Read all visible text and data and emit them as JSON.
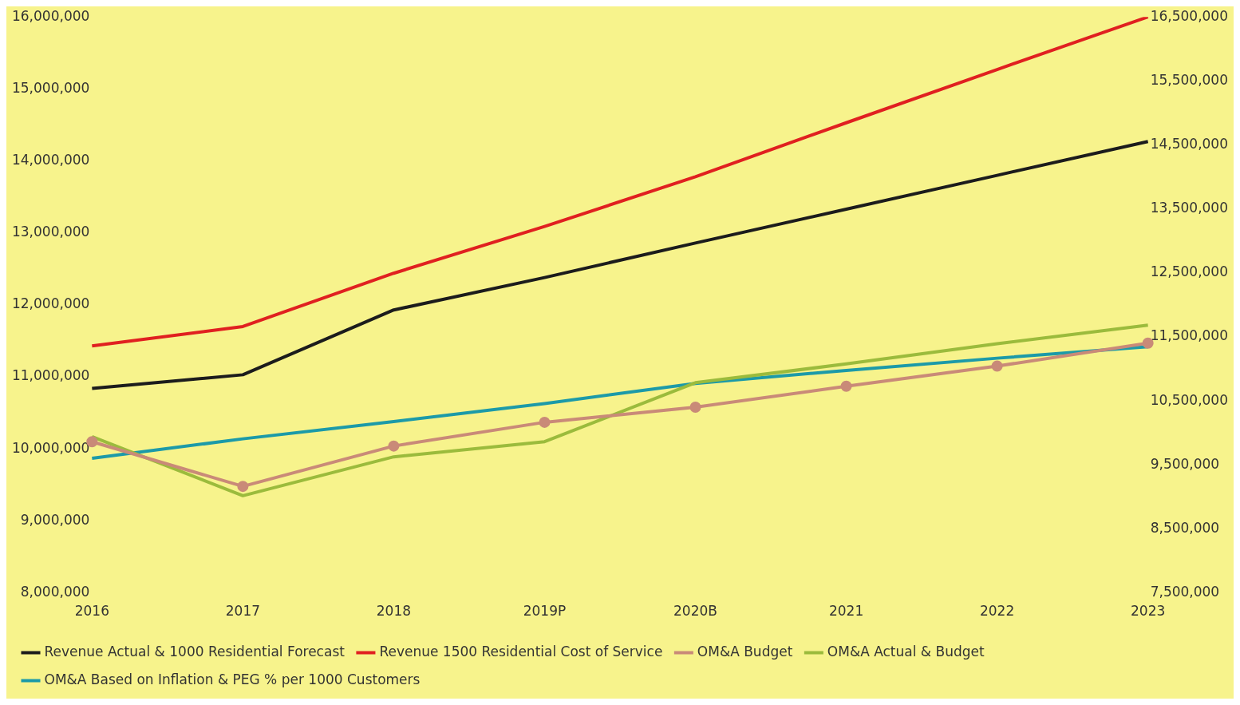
{
  "chart_data": {
    "type": "line",
    "categories": [
      "2016",
      "2017",
      "2018",
      "2019P",
      "2020B",
      "2021",
      "2022",
      "2023"
    ],
    "series": [
      {
        "name": "Revenue Actual & 1000 Residential Forecast",
        "color": "#1c1c1c",
        "values": [
          10840000,
          11030000,
          11930000,
          12380000,
          12860000,
          13330000,
          13800000,
          14270000
        ]
      },
      {
        "name": "Revenue 1500 Residential Cost of Service",
        "color": "#e02020",
        "values": [
          11430000,
          11700000,
          12440000,
          13090000,
          13780000,
          14530000,
          15270000,
          16000000
        ]
      },
      {
        "name": "OM&A Budget",
        "color": "#c98a78",
        "marker": "circle",
        "values": [
          10100000,
          9480000,
          10040000,
          10370000,
          10580000,
          10870000,
          11150000,
          11470000
        ]
      },
      {
        "name": "OM&A Actual & Budget",
        "color": "#9bbb3c",
        "values": [
          10170000,
          9350000,
          9890000,
          10100000,
          10920000,
          11180000,
          11460000,
          11720000
        ]
      },
      {
        "name": "OM&A Based on Inflation & PEG % per 1000 Customers",
        "color": "#1c9aa8",
        "values": [
          9870000,
          10140000,
          10380000,
          10630000,
          10910000,
          11090000,
          11260000,
          11420000
        ]
      }
    ],
    "ylim": [
      8000000,
      16000000
    ],
    "yticks": [
      {
        "value": 8000000,
        "label": "8,000,000"
      },
      {
        "value": 9000000,
        "label": "9,000,000"
      },
      {
        "value": 10000000,
        "label": "10,000,000"
      },
      {
        "value": 11000000,
        "label": "11,000,000"
      },
      {
        "value": 12000000,
        "label": "12,000,000"
      },
      {
        "value": 13000000,
        "label": "13,000,000"
      },
      {
        "value": 14000000,
        "label": "14,000,000"
      },
      {
        "value": 15000000,
        "label": "15,000,000"
      },
      {
        "value": 16000000,
        "label": "16,000,000"
      }
    ],
    "y2lim": [
      7500000,
      16500000
    ],
    "y2ticks": [
      {
        "value": 7500000,
        "label": "7,500,000"
      },
      {
        "value": 8500000,
        "label": "8,500,000"
      },
      {
        "value": 9500000,
        "label": "9,500,000"
      },
      {
        "value": 10500000,
        "label": "10,500,000"
      },
      {
        "value": 11500000,
        "label": "11,500,000"
      },
      {
        "value": 12500000,
        "label": "12,500,000"
      },
      {
        "value": 13500000,
        "label": "13,500,000"
      },
      {
        "value": 14500000,
        "label": "14,500,000"
      },
      {
        "value": 15500000,
        "label": "15,500,000"
      },
      {
        "value": 16500000,
        "label": "16,500,000"
      }
    ],
    "grid": false,
    "legend": "bottom",
    "marker": "none",
    "line_style": "solid"
  }
}
